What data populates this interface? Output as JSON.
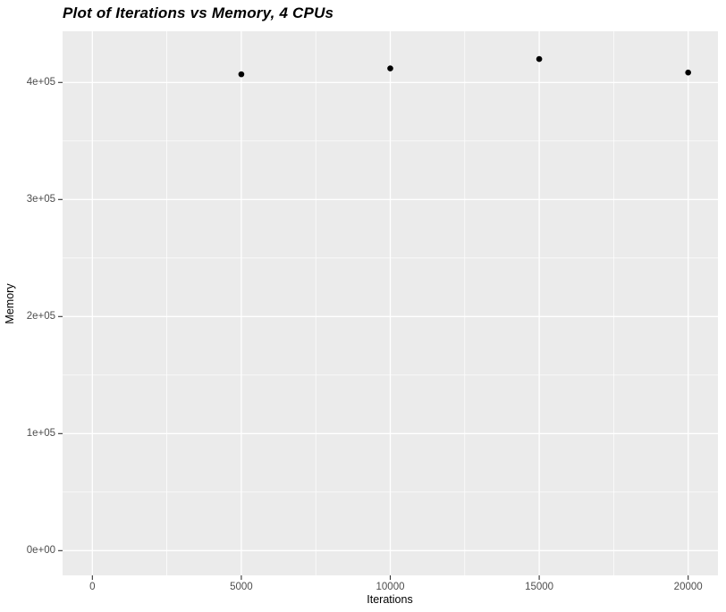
{
  "title": "Plot of Iterations vs Memory, 4 CPUs",
  "chart_data": {
    "type": "scatter",
    "title": "Plot of Iterations vs Memory, 4 CPUs",
    "xlabel": "Iterations",
    "ylabel": "Memory",
    "legend": "none",
    "grid": "major and minor white gridlines on gray panel",
    "points": [
      {
        "x": 5000,
        "y": 407000
      },
      {
        "x": 10000,
        "y": 412000
      },
      {
        "x": 15000,
        "y": 420000
      },
      {
        "x": 20000,
        "y": 408500
      }
    ],
    "x_ticks": [
      {
        "value": 0,
        "label": "0"
      },
      {
        "value": 5000,
        "label": "5000"
      },
      {
        "value": 10000,
        "label": "10000"
      },
      {
        "value": 15000,
        "label": "15000"
      },
      {
        "value": 20000,
        "label": "20000"
      }
    ],
    "y_ticks": [
      {
        "value": 0,
        "label": "0e+00"
      },
      {
        "value": 100000,
        "label": "1e+05"
      },
      {
        "value": 200000,
        "label": "2e+05"
      },
      {
        "value": 300000,
        "label": "3e+05"
      },
      {
        "value": 400000,
        "label": "4e+05"
      }
    ],
    "x_minor": [
      2500,
      7500,
      12500,
      17500
    ],
    "y_minor": [
      50000,
      150000,
      250000,
      350000
    ],
    "xlim": [
      -1000,
      21000
    ],
    "ylim": [
      -21130,
      443730
    ]
  },
  "style": {
    "background": "#FFFFFF",
    "panel_bg": "#EBEBEB",
    "grid_color": "#FFFFFF",
    "point_color": "#000000",
    "tick_label_color": "#4D4D4D",
    "tick_mark_color": "#333333",
    "axis_title_color": "#000000",
    "title_color": "#000000"
  }
}
